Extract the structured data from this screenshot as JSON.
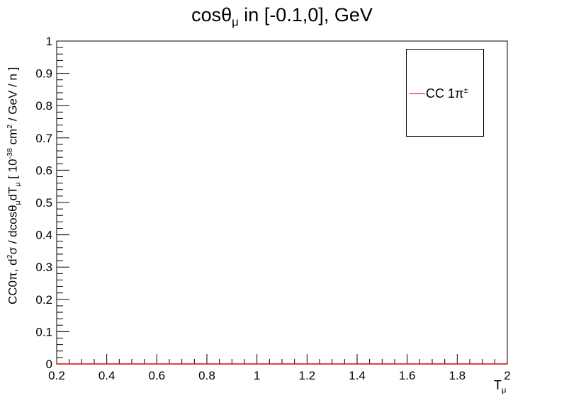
{
  "chart_data": {
    "type": "line",
    "title_main": "cosθ",
    "title_sub": "μ",
    "title_rest": " in [-0.1,0], GeV",
    "ylabel": {
      "p1": "CC0π, d",
      "p1_sup": "2",
      "p2": "σ / dcosθ",
      "p2_sub": "μ",
      "p3": "dT",
      "p3_sub": "μ",
      "p4": " [ 10",
      "p4_sup": "-38",
      "p5": " cm",
      "p5_sup": "2",
      "p6": " / GeV / n ]"
    },
    "xlabel_main": "T",
    "xlabel_sub": "μ",
    "xlim": [
      0.2,
      2
    ],
    "ylim": [
      0,
      1
    ],
    "x_ticks": [
      "0.2",
      "0.4",
      "0.6",
      "0.8",
      "1",
      "1.2",
      "1.4",
      "1.6",
      "1.8",
      "2"
    ],
    "y_ticks": [
      "0",
      "0.1",
      "0.2",
      "0.3",
      "0.4",
      "0.5",
      "0.6",
      "0.7",
      "0.8",
      "0.9",
      "1"
    ],
    "series": [
      {
        "name_main": "CC 1π",
        "name_sup": "±",
        "color": "#e00000",
        "x": [
          0.2,
          2
        ],
        "y": [
          0,
          0
        ]
      }
    ],
    "legend_position": "top-right",
    "grid": false
  }
}
